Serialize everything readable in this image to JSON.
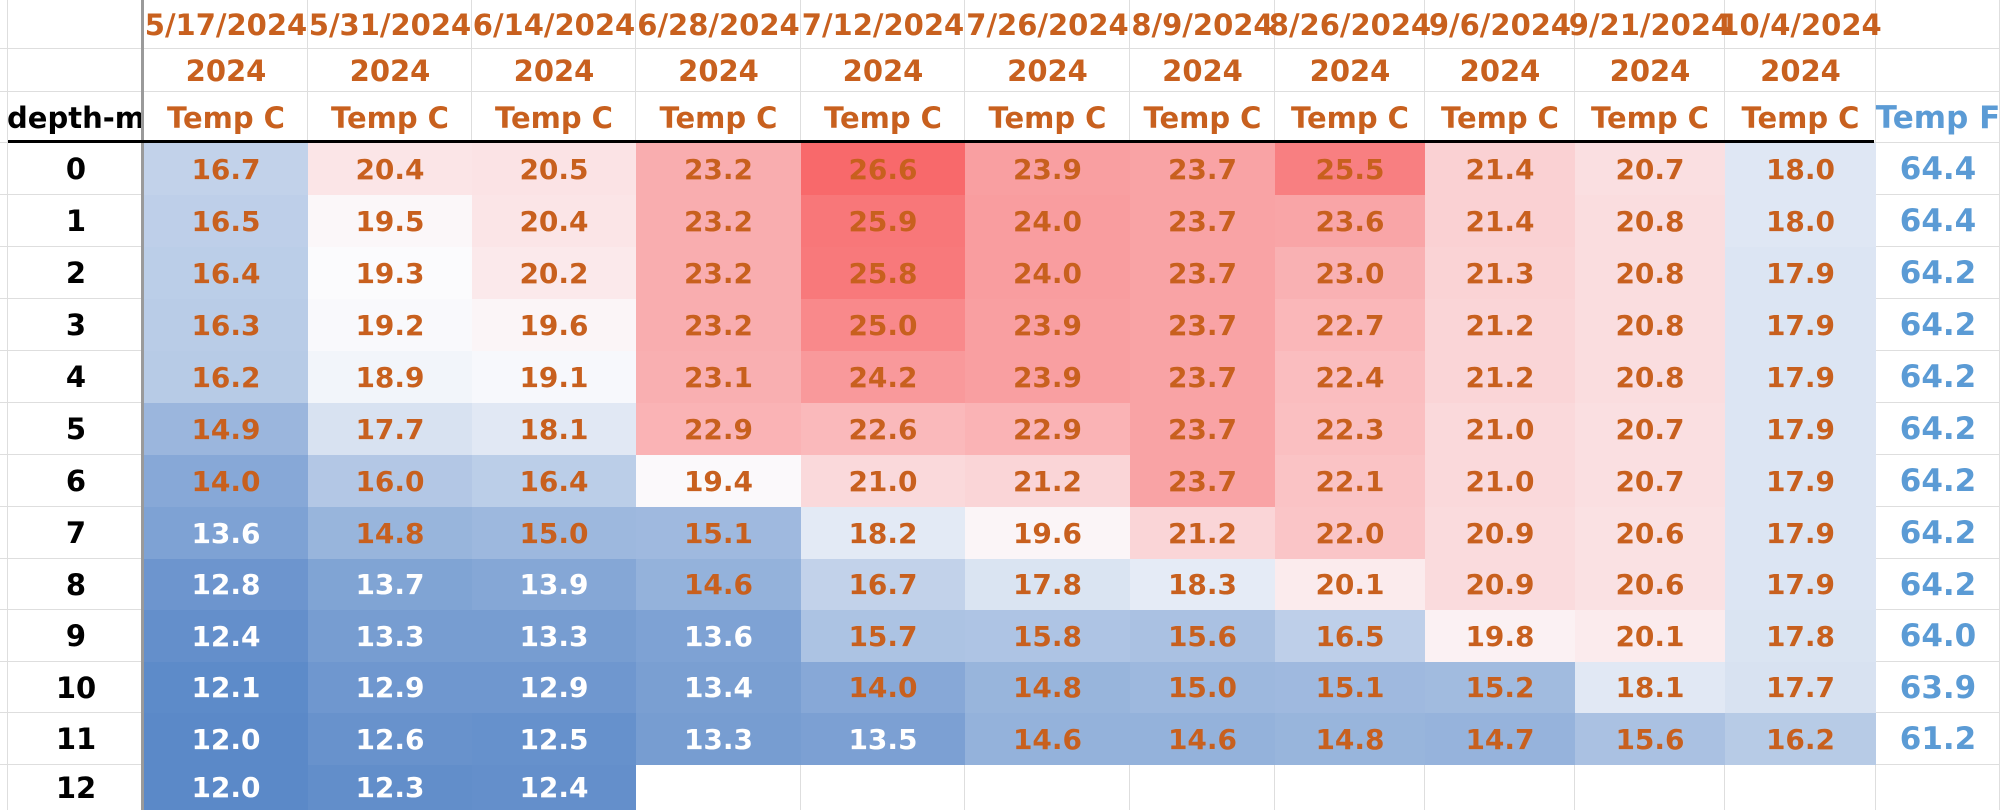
{
  "sheet": {
    "dates": [
      "5/17/2024",
      "5/31/2024",
      "6/14/2024",
      "6/28/2024",
      "7/12/2024",
      "7/26/2024",
      "8/9/2024",
      "8/26/2024",
      "9/6/2024",
      "9/21/2024",
      "10/4/2024"
    ],
    "years": [
      "2024",
      "2024",
      "2024",
      "2024",
      "2024",
      "2024",
      "2024",
      "2024",
      "2024",
      "2024",
      "2024"
    ],
    "units": [
      "Temp C",
      "Temp C",
      "Temp C",
      "Temp C",
      "Temp C",
      "Temp C",
      "Temp C",
      "Temp C",
      "Temp C",
      "Temp C",
      "Temp C"
    ],
    "depth_header": "depth-m",
    "temp_f_header": "Temp F",
    "depths": [
      "0",
      "1",
      "2",
      "3",
      "4",
      "5",
      "6",
      "7",
      "8",
      "9",
      "10",
      "11",
      "12"
    ],
    "values": [
      [
        "16.7",
        "20.4",
        "20.5",
        "23.2",
        "26.6",
        "23.9",
        "23.7",
        "25.5",
        "21.4",
        "20.7",
        "18.0"
      ],
      [
        "16.5",
        "19.5",
        "20.4",
        "23.2",
        "25.9",
        "24.0",
        "23.7",
        "23.6",
        "21.4",
        "20.8",
        "18.0"
      ],
      [
        "16.4",
        "19.3",
        "20.2",
        "23.2",
        "25.8",
        "24.0",
        "23.7",
        "23.0",
        "21.3",
        "20.8",
        "17.9"
      ],
      [
        "16.3",
        "19.2",
        "19.6",
        "23.2",
        "25.0",
        "23.9",
        "23.7",
        "22.7",
        "21.2",
        "20.8",
        "17.9"
      ],
      [
        "16.2",
        "18.9",
        "19.1",
        "23.1",
        "24.2",
        "23.9",
        "23.7",
        "22.4",
        "21.2",
        "20.8",
        "17.9"
      ],
      [
        "14.9",
        "17.7",
        "18.1",
        "22.9",
        "22.6",
        "22.9",
        "23.7",
        "22.3",
        "21.0",
        "20.7",
        "17.9"
      ],
      [
        "14.0",
        "16.0",
        "16.4",
        "19.4",
        "21.0",
        "21.2",
        "23.7",
        "22.1",
        "21.0",
        "20.7",
        "17.9"
      ],
      [
        "13.6",
        "14.8",
        "15.0",
        "15.1",
        "18.2",
        "19.6",
        "21.2",
        "22.0",
        "20.9",
        "20.6",
        "17.9"
      ],
      [
        "12.8",
        "13.7",
        "13.9",
        "14.6",
        "16.7",
        "17.8",
        "18.3",
        "20.1",
        "20.9",
        "20.6",
        "17.9"
      ],
      [
        "12.4",
        "13.3",
        "13.3",
        "13.6",
        "15.7",
        "15.8",
        "15.6",
        "16.5",
        "19.8",
        "20.1",
        "17.8"
      ],
      [
        "12.1",
        "12.9",
        "12.9",
        "13.4",
        "14.0",
        "14.8",
        "15.0",
        "15.1",
        "15.2",
        "18.1",
        "17.7"
      ],
      [
        "12.0",
        "12.6",
        "12.5",
        "13.3",
        "13.5",
        "14.6",
        "14.6",
        "14.8",
        "14.7",
        "15.6",
        "16.2"
      ],
      [
        "12.0",
        "12.3",
        "12.4",
        "",
        "",
        "",
        "",
        "",
        "",
        "",
        ""
      ]
    ],
    "temp_f": [
      "64.4",
      "64.4",
      "64.2",
      "64.2",
      "64.2",
      "64.2",
      "64.2",
      "64.2",
      "64.2",
      "64.0",
      "63.9",
      "61.2",
      ""
    ],
    "colors": {
      "low": "#5b89c8",
      "mid": "#fbfbfd",
      "high": "#f8696b",
      "header_text": "#c8601e",
      "value_text_warm": "#c8601e",
      "value_text_cold": "#ffffff",
      "temp_f_text": "#5b9bd5"
    },
    "scale": {
      "min": 12.0,
      "mid": 19.3,
      "max": 26.6
    },
    "white_text_threshold": 14.0
  }
}
